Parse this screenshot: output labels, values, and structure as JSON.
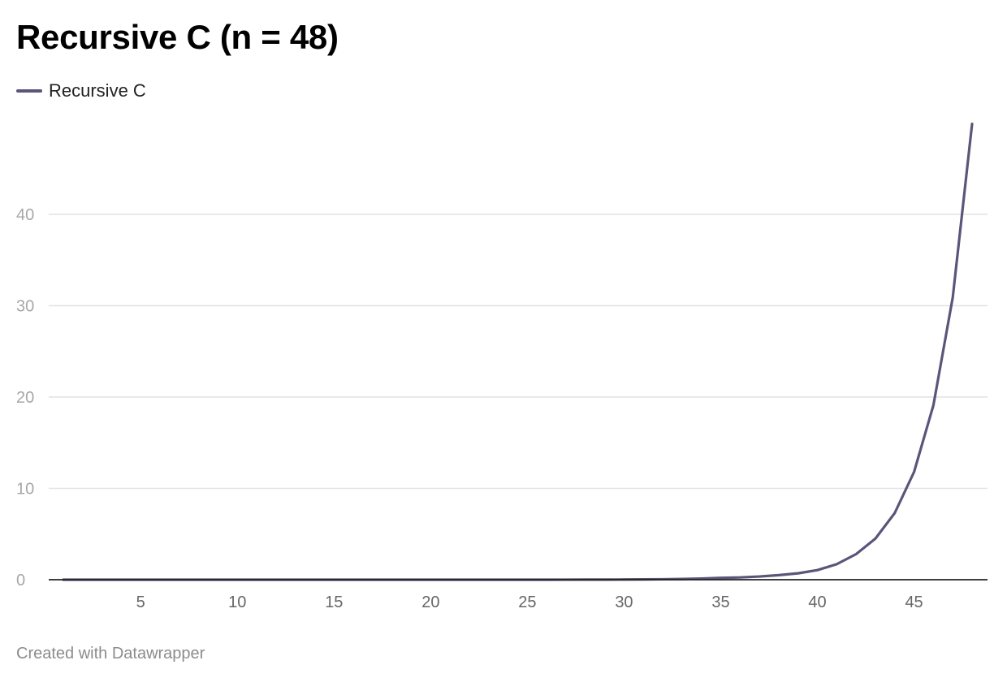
{
  "title": "Recursive C (n = 48)",
  "footer": "Created with Datawrapper",
  "colors": {
    "series": "#5d5479",
    "grid": "#e2e2e2",
    "axis_line": "#222222",
    "y_tick_label": "#a7a7a7",
    "x_tick_label": "#666666"
  },
  "chart_data": {
    "type": "line",
    "title": "Recursive C (n = 48)",
    "xlabel": "",
    "ylabel": "",
    "xlim": [
      1,
      48
    ],
    "ylim": [
      0,
      50
    ],
    "grid": true,
    "legend_position": "top-left",
    "x_ticks": [
      5,
      10,
      15,
      20,
      25,
      30,
      35,
      40,
      45
    ],
    "y_ticks": [
      0,
      10,
      20,
      30,
      40
    ],
    "series": [
      {
        "name": "Recursive C",
        "x": [
          1,
          2,
          3,
          4,
          5,
          6,
          7,
          8,
          9,
          10,
          11,
          12,
          13,
          14,
          15,
          16,
          17,
          18,
          19,
          20,
          21,
          22,
          23,
          24,
          25,
          26,
          27,
          28,
          29,
          30,
          31,
          32,
          33,
          34,
          35,
          36,
          37,
          38,
          39,
          40,
          41,
          42,
          43,
          44,
          45,
          46,
          47,
          48
        ],
        "values": [
          0,
          0,
          0,
          0,
          0,
          0,
          0,
          0,
          0,
          0,
          0,
          0,
          0,
          0,
          0,
          0,
          0,
          0,
          0,
          0,
          0,
          0,
          0,
          0.001,
          0.002,
          0.003,
          0.005,
          0.008,
          0.013,
          0.02,
          0.03,
          0.05,
          0.08,
          0.13,
          0.2,
          0.25,
          0.35,
          0.5,
          0.7,
          1.05,
          1.7,
          2.8,
          4.5,
          7.3,
          11.8,
          19.1,
          30.9,
          49.9
        ]
      }
    ]
  }
}
